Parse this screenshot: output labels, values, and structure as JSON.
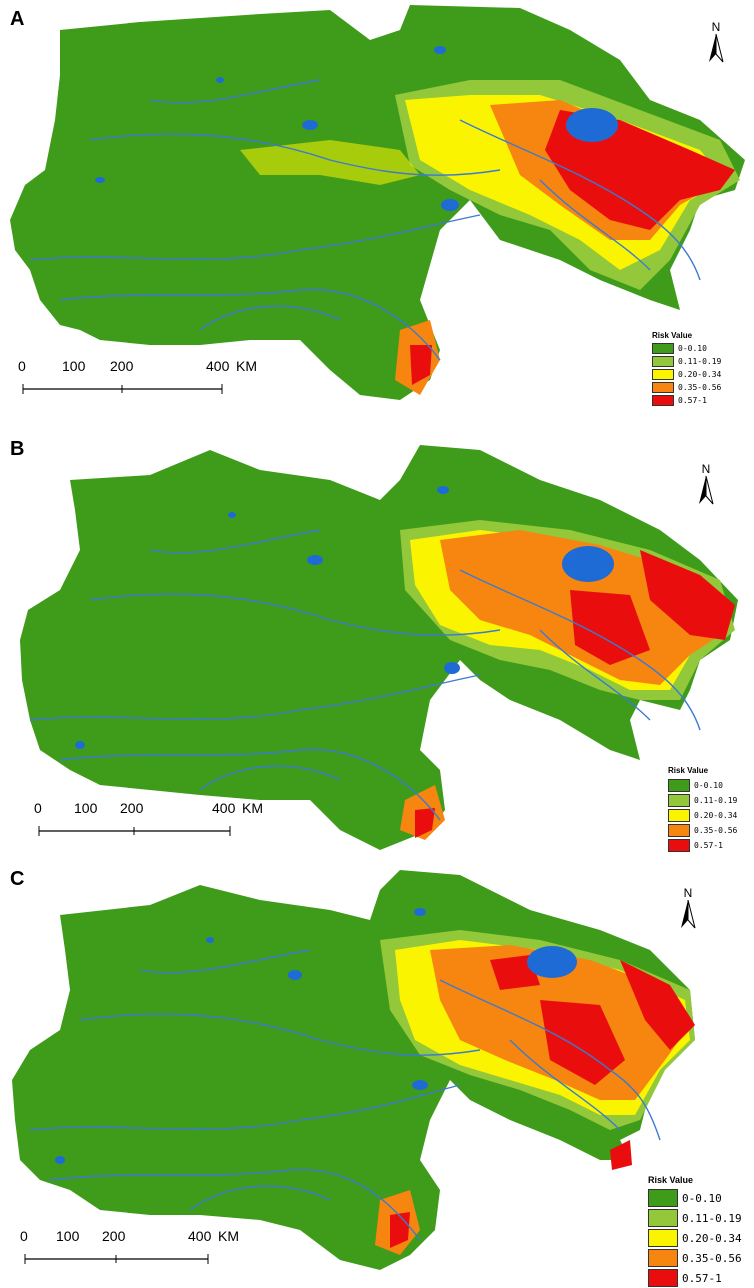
{
  "colors": {
    "low": "#3f9c1a",
    "low_mid": "#93c83a",
    "mid": "#fbf400",
    "mid_high": "#f6860f",
    "high": "#ea0d0d",
    "water": "#1e6bd6",
    "river": "#3b7bd0"
  },
  "panels": [
    {
      "letter": "A",
      "legend": {
        "title": "Risk Value",
        "classes": [
          "0-0.10",
          "0.11-0.19",
          "0.20-0.34",
          "0.35-0.56",
          "0.57-1"
        ]
      },
      "scale": {
        "ticks": [
          "0",
          "100",
          "200",
          "400"
        ],
        "unit": "KM"
      },
      "north_label": "N"
    },
    {
      "letter": "B",
      "legend": {
        "title": "Risk Value",
        "classes": [
          "0-0.10",
          "0.11-0.19",
          "0.20-0.34",
          "0.35-0.56",
          "0.57-1"
        ]
      },
      "scale": {
        "ticks": [
          "0",
          "100",
          "200",
          "400"
        ],
        "unit": "KM"
      },
      "north_label": "N"
    },
    {
      "letter": "C",
      "legend": {
        "title": "Risk Value",
        "classes": [
          "0-0.10",
          "0.11-0.19",
          "0.20-0.34",
          "0.35-0.56",
          "0.57-1"
        ]
      },
      "scale": {
        "ticks": [
          "0",
          "100",
          "200",
          "400"
        ],
        "unit": "KM"
      },
      "north_label": "N"
    }
  ]
}
